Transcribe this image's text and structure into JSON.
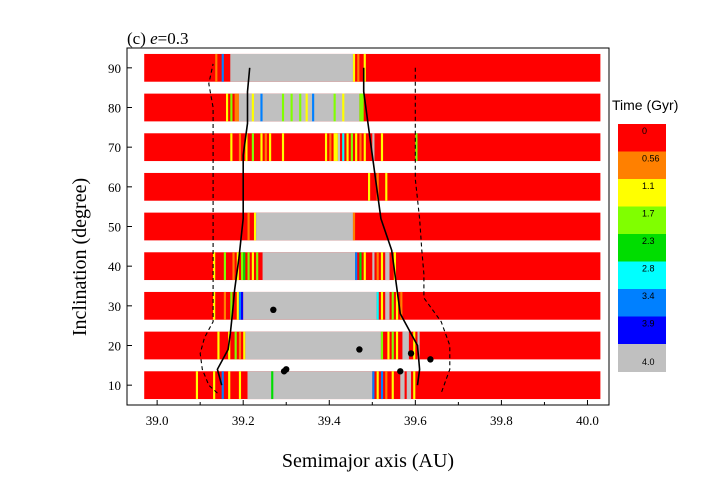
{
  "chart_data": {
    "type": "heatmap",
    "panel_label": "(c)",
    "title_var": "e",
    "title_eq": "=0.3",
    "xlabel": "Semimajor axis (AU)",
    "ylabel": "Inclination (degree)",
    "xlim": [
      38.93,
      40.05
    ],
    "ylim": [
      5,
      95
    ],
    "xticks": [
      "39.0",
      "39.2",
      "39.4",
      "39.6",
      "39.8",
      "40.0"
    ],
    "yticks": [
      "10",
      "20",
      "30",
      "40",
      "50",
      "60",
      "70",
      "80",
      "90"
    ],
    "strip_range": [
      38.97,
      40.03
    ],
    "strip_halfheight_deg": 3.5,
    "colorbar": {
      "title": "Time (Gyr)",
      "labels": [
        "0",
        "0.56",
        "1.1",
        "1.7",
        "2.3",
        "2.8",
        "3.4",
        "3.9",
        "4.0"
      ],
      "colors": [
        "#ff0000",
        "#ff8000",
        "#ffff00",
        "#80ff00",
        "#00dd00",
        "#00ffff",
        "#0080ff",
        "#0000ff",
        "#c0c0c0"
      ]
    },
    "background_color": "#ff0000",
    "strips": [
      {
        "inclination": 90,
        "segments": [
          {
            "from": 39.135,
            "to": 39.14,
            "c": "#ff8000"
          },
          {
            "from": 39.15,
            "to": 39.155,
            "c": "#0080ff"
          },
          {
            "from": 39.17,
            "to": 39.455,
            "c": "#c0c0c0"
          },
          {
            "from": 39.455,
            "to": 39.46,
            "c": "#ffff00"
          },
          {
            "from": 39.465,
            "to": 39.47,
            "c": "#ff8000"
          },
          {
            "from": 39.48,
            "to": 39.485,
            "c": "#ffff00"
          }
        ]
      },
      {
        "inclination": 80,
        "segments": [
          {
            "from": 39.16,
            "to": 39.165,
            "c": "#ffff00"
          },
          {
            "from": 39.17,
            "to": 39.175,
            "c": "#80ff00"
          },
          {
            "from": 39.18,
            "to": 39.19,
            "c": "#ff8000"
          },
          {
            "from": 39.19,
            "to": 39.47,
            "c": "#c0c0c0"
          },
          {
            "from": 39.22,
            "to": 39.225,
            "c": "#ffff00"
          },
          {
            "from": 39.24,
            "to": 39.245,
            "c": "#0080ff"
          },
          {
            "from": 39.29,
            "to": 39.295,
            "c": "#80ff00"
          },
          {
            "from": 39.31,
            "to": 39.315,
            "c": "#80ff00"
          },
          {
            "from": 39.33,
            "to": 39.335,
            "c": "#80ff00"
          },
          {
            "from": 39.345,
            "to": 39.35,
            "c": "#ffff00"
          },
          {
            "from": 39.36,
            "to": 39.365,
            "c": "#0080ff"
          },
          {
            "from": 39.41,
            "to": 39.415,
            "c": "#80ff00"
          },
          {
            "from": 39.43,
            "to": 39.435,
            "c": "#ffff00"
          },
          {
            "from": 39.47,
            "to": 39.48,
            "c": "#80ff00"
          }
        ]
      },
      {
        "inclination": 70,
        "segments": [
          {
            "from": 39.17,
            "to": 39.175,
            "c": "#ffff00"
          },
          {
            "from": 39.19,
            "to": 39.195,
            "c": "#ff8000"
          },
          {
            "from": 39.205,
            "to": 39.21,
            "c": "#ffff00"
          },
          {
            "from": 39.22,
            "to": 39.225,
            "c": "#80ff00"
          },
          {
            "from": 39.24,
            "to": 39.245,
            "c": "#ffff00"
          },
          {
            "from": 39.25,
            "to": 39.255,
            "c": "#ff8000"
          },
          {
            "from": 39.26,
            "to": 39.265,
            "c": "#ffff00"
          },
          {
            "from": 39.29,
            "to": 39.295,
            "c": "#ffff00"
          },
          {
            "from": 39.39,
            "to": 39.395,
            "c": "#ffff00"
          },
          {
            "from": 39.4,
            "to": 39.405,
            "c": "#ff8000"
          },
          {
            "from": 39.41,
            "to": 39.42,
            "c": "#ffff00"
          },
          {
            "from": 39.42,
            "to": 39.425,
            "c": "#c0c0c0"
          },
          {
            "from": 39.43,
            "to": 39.435,
            "c": "#00ffff"
          },
          {
            "from": 39.44,
            "to": 39.445,
            "c": "#ffff00"
          },
          {
            "from": 39.45,
            "to": 39.455,
            "c": "#80ff00"
          },
          {
            "from": 39.46,
            "to": 39.465,
            "c": "#ffff00"
          },
          {
            "from": 39.47,
            "to": 39.475,
            "c": "#ff8000"
          },
          {
            "from": 39.48,
            "to": 39.485,
            "c": "#ffff00"
          },
          {
            "from": 39.5,
            "to": 39.505,
            "c": "#c0c0c0"
          },
          {
            "from": 39.52,
            "to": 39.525,
            "c": "#ffff00"
          },
          {
            "from": 39.6,
            "to": 39.605,
            "c": "#80ff00"
          }
        ]
      },
      {
        "inclination": 60,
        "segments": [
          {
            "from": 39.49,
            "to": 39.495,
            "c": "#ffff00"
          },
          {
            "from": 39.51,
            "to": 39.515,
            "c": "#ff8000"
          },
          {
            "from": 39.53,
            "to": 39.535,
            "c": "#ffff00"
          }
        ]
      },
      {
        "inclination": 50,
        "segments": [
          {
            "from": 39.21,
            "to": 39.215,
            "c": "#ff8000"
          },
          {
            "from": 39.225,
            "to": 39.23,
            "c": "#ffff00"
          },
          {
            "from": 39.23,
            "to": 39.455,
            "c": "#c0c0c0"
          },
          {
            "from": 39.455,
            "to": 39.46,
            "c": "#ff8000"
          }
        ]
      },
      {
        "inclination": 40,
        "segments": [
          {
            "from": 39.13,
            "to": 39.135,
            "c": "#ffff00"
          },
          {
            "from": 39.155,
            "to": 39.16,
            "c": "#80ff00"
          },
          {
            "from": 39.175,
            "to": 39.18,
            "c": "#ff8000"
          },
          {
            "from": 39.185,
            "to": 39.19,
            "c": "#ffff00"
          },
          {
            "from": 39.195,
            "to": 39.2,
            "c": "#80ff00"
          },
          {
            "from": 39.2,
            "to": 39.205,
            "c": "#00dd00"
          },
          {
            "from": 39.21,
            "to": 39.215,
            "c": "#80ff00"
          },
          {
            "from": 39.22,
            "to": 39.225,
            "c": "#ffff00"
          },
          {
            "from": 39.23,
            "to": 39.235,
            "c": "#80ff00"
          },
          {
            "from": 39.245,
            "to": 39.46,
            "c": "#c0c0c0"
          },
          {
            "from": 39.46,
            "to": 39.465,
            "c": "#0080ff"
          },
          {
            "from": 39.47,
            "to": 39.475,
            "c": "#00dd00"
          },
          {
            "from": 39.48,
            "to": 39.485,
            "c": "#ffff00"
          },
          {
            "from": 39.5,
            "to": 39.505,
            "c": "#c0c0c0"
          },
          {
            "from": 39.51,
            "to": 39.515,
            "c": "#ff8000"
          },
          {
            "from": 39.52,
            "to": 39.525,
            "c": "#ffff00"
          },
          {
            "from": 39.53,
            "to": 39.54,
            "c": "#c0c0c0"
          },
          {
            "from": 39.55,
            "to": 39.555,
            "c": "#ffff00"
          }
        ]
      },
      {
        "inclination": 30,
        "segments": [
          {
            "from": 39.13,
            "to": 39.135,
            "c": "#ffff00"
          },
          {
            "from": 39.155,
            "to": 39.16,
            "c": "#ff8000"
          },
          {
            "from": 39.17,
            "to": 39.175,
            "c": "#80ff00"
          },
          {
            "from": 39.185,
            "to": 39.19,
            "c": "#ffff00"
          },
          {
            "from": 39.19,
            "to": 39.195,
            "c": "#0080ff"
          },
          {
            "from": 39.195,
            "to": 39.2,
            "c": "#0000ff"
          },
          {
            "from": 39.2,
            "to": 39.51,
            "c": "#c0c0c0"
          },
          {
            "from": 39.51,
            "to": 39.515,
            "c": "#00ffff"
          },
          {
            "from": 39.52,
            "to": 39.525,
            "c": "#ffff00"
          },
          {
            "from": 39.53,
            "to": 39.54,
            "c": "#c0c0c0"
          },
          {
            "from": 39.545,
            "to": 39.55,
            "c": "#80ff00"
          },
          {
            "from": 39.555,
            "to": 39.56,
            "c": "#ffff00"
          },
          {
            "from": 39.565,
            "to": 39.57,
            "c": "#ff8000"
          }
        ]
      },
      {
        "inclination": 20,
        "segments": [
          {
            "from": 39.14,
            "to": 39.145,
            "c": "#ffff00"
          },
          {
            "from": 39.165,
            "to": 39.17,
            "c": "#ffff00"
          },
          {
            "from": 39.18,
            "to": 39.185,
            "c": "#80ff00"
          },
          {
            "from": 39.19,
            "to": 39.195,
            "c": "#ff8000"
          },
          {
            "from": 39.2,
            "to": 39.205,
            "c": "#ffff00"
          },
          {
            "from": 39.205,
            "to": 39.52,
            "c": "#c0c0c0"
          },
          {
            "from": 39.52,
            "to": 39.525,
            "c": "#80ff00"
          },
          {
            "from": 39.535,
            "to": 39.54,
            "c": "#ffff00"
          },
          {
            "from": 39.545,
            "to": 39.55,
            "c": "#80ff00"
          },
          {
            "from": 39.555,
            "to": 39.56,
            "c": "#ffff00"
          },
          {
            "from": 39.57,
            "to": 39.585,
            "c": "#c0c0c0"
          },
          {
            "from": 39.595,
            "to": 39.6,
            "c": "#ffff00"
          },
          {
            "from": 39.605,
            "to": 39.61,
            "c": "#c0c0c0"
          }
        ]
      },
      {
        "inclination": 10,
        "segments": [
          {
            "from": 39.09,
            "to": 39.095,
            "c": "#ffff00"
          },
          {
            "from": 39.13,
            "to": 39.135,
            "c": "#ffff00"
          },
          {
            "from": 39.15,
            "to": 39.155,
            "c": "#0080ff"
          },
          {
            "from": 39.165,
            "to": 39.17,
            "c": "#ffff00"
          },
          {
            "from": 39.19,
            "to": 39.195,
            "c": "#ffff00"
          },
          {
            "from": 39.21,
            "to": 39.5,
            "c": "#c0c0c0"
          },
          {
            "from": 39.265,
            "to": 39.27,
            "c": "#00dd00"
          },
          {
            "from": 39.5,
            "to": 39.505,
            "c": "#0080ff"
          },
          {
            "from": 39.51,
            "to": 39.515,
            "c": "#ffff00"
          },
          {
            "from": 39.52,
            "to": 39.525,
            "c": "#0080ff"
          },
          {
            "from": 39.53,
            "to": 39.535,
            "c": "#ff8000"
          },
          {
            "from": 39.545,
            "to": 39.55,
            "c": "#ffff00"
          },
          {
            "from": 39.565,
            "to": 39.575,
            "c": "#c0c0c0"
          },
          {
            "from": 39.58,
            "to": 39.59,
            "c": "#c0c0c0"
          },
          {
            "from": 39.595,
            "to": 39.6,
            "c": "#ffff00"
          }
        ]
      }
    ],
    "boundary_curves": [
      {
        "name": "inner-solid-boundary",
        "style": "solid",
        "points": [
          [
            39.15,
            10
          ],
          [
            39.14,
            14
          ],
          [
            39.165,
            19
          ],
          [
            39.17,
            23
          ],
          [
            39.175,
            28
          ],
          [
            39.18,
            34
          ],
          [
            39.19,
            42
          ],
          [
            39.2,
            52
          ],
          [
            39.2,
            60
          ],
          [
            39.2,
            68
          ],
          [
            39.21,
            76
          ],
          [
            39.21,
            84
          ],
          [
            39.215,
            90
          ]
        ]
      },
      {
        "name": "outer-solid-boundary",
        "style": "solid",
        "points": [
          [
            39.48,
            90
          ],
          [
            39.48,
            84
          ],
          [
            39.49,
            76
          ],
          [
            39.5,
            68
          ],
          [
            39.51,
            60
          ],
          [
            39.52,
            52
          ],
          [
            39.545,
            44
          ],
          [
            39.555,
            36
          ],
          [
            39.565,
            28
          ],
          [
            39.605,
            20
          ],
          [
            39.61,
            14
          ],
          [
            39.605,
            10
          ]
        ]
      },
      {
        "name": "inner-dashed-boundary",
        "style": "dashed",
        "points": [
          [
            39.14,
            8
          ],
          [
            39.12,
            10
          ],
          [
            39.105,
            14
          ],
          [
            39.1,
            18
          ],
          [
            39.11,
            22
          ],
          [
            39.13,
            26
          ],
          [
            39.13,
            30
          ],
          [
            39.13,
            36
          ],
          [
            39.13,
            42
          ],
          [
            39.13,
            48
          ],
          [
            39.13,
            56
          ],
          [
            39.13,
            64
          ],
          [
            39.13,
            70
          ],
          [
            39.13,
            80
          ],
          [
            39.12,
            86
          ],
          [
            39.13,
            91
          ]
        ]
      },
      {
        "name": "outer-dashed-boundary",
        "style": "dashed",
        "points": [
          [
            39.6,
            90
          ],
          [
            39.6,
            84
          ],
          [
            39.6,
            76
          ],
          [
            39.6,
            68
          ],
          [
            39.6,
            62
          ],
          [
            39.61,
            52
          ],
          [
            39.615,
            44
          ],
          [
            39.62,
            38
          ],
          [
            39.62,
            32
          ],
          [
            39.66,
            26
          ],
          [
            39.68,
            20
          ],
          [
            39.68,
            14
          ],
          [
            39.66,
            8
          ]
        ]
      }
    ],
    "points": [
      {
        "x": 39.3,
        "y": 14
      },
      {
        "x": 39.295,
        "y": 13.5
      },
      {
        "x": 39.27,
        "y": 29
      },
      {
        "x": 39.47,
        "y": 19
      },
      {
        "x": 39.565,
        "y": 13.5
      },
      {
        "x": 39.59,
        "y": 18
      },
      {
        "x": 39.635,
        "y": 16.5
      }
    ]
  }
}
